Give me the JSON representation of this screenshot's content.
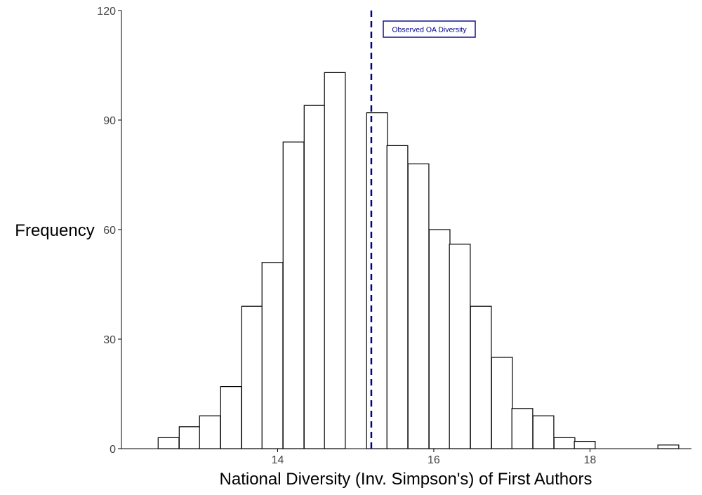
{
  "chart_data": {
    "type": "bar",
    "subtype": "histogram",
    "xlabel": "National Diversity (Inv. Simpson's) of First Authors",
    "ylabel": "Frequency",
    "xlim": [
      12.0,
      19.3
    ],
    "ylim": [
      0,
      120
    ],
    "x_ticks": [
      14,
      16,
      18
    ],
    "y_ticks": [
      0,
      30,
      60,
      90,
      120
    ],
    "bin_width": 0.267,
    "bins": [
      {
        "start": 12.47,
        "count": 3
      },
      {
        "start": 12.74,
        "count": 6
      },
      {
        "start": 13.0,
        "count": 9
      },
      {
        "start": 13.27,
        "count": 17
      },
      {
        "start": 13.54,
        "count": 39
      },
      {
        "start": 13.8,
        "count": 51
      },
      {
        "start": 14.07,
        "count": 84
      },
      {
        "start": 14.34,
        "count": 94
      },
      {
        "start": 14.6,
        "count": 103
      },
      {
        "start": 14.87,
        "count": 0
      },
      {
        "start": 15.14,
        "count": 92
      },
      {
        "start": 15.4,
        "count": 83
      },
      {
        "start": 15.67,
        "count": 78
      },
      {
        "start": 15.94,
        "count": 60
      },
      {
        "start": 16.2,
        "count": 56
      },
      {
        "start": 16.47,
        "count": 39
      },
      {
        "start": 16.74,
        "count": 25
      },
      {
        "start": 17.0,
        "count": 11
      },
      {
        "start": 17.27,
        "count": 9
      },
      {
        "start": 17.54,
        "count": 3
      },
      {
        "start": 17.8,
        "count": 2
      },
      {
        "start": 18.07,
        "count": 0
      },
      {
        "start": 18.34,
        "count": 0
      },
      {
        "start": 18.6,
        "count": 0
      },
      {
        "start": 18.87,
        "count": 1
      }
    ],
    "reference_line": {
      "x": 15.2,
      "style": "dashed",
      "color": "#00008b",
      "label": "Observed OA Diversity"
    },
    "grid": false,
    "legend": "none"
  }
}
